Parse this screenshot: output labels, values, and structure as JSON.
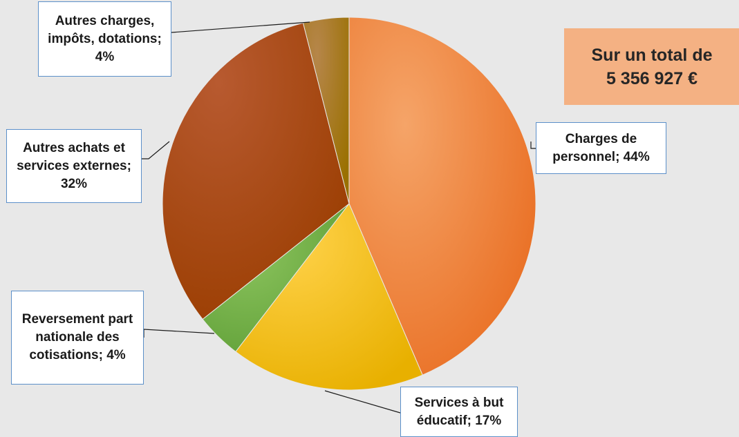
{
  "total": {
    "line1": "Sur un total de",
    "line2": "5 356 927 €"
  },
  "chart_data": {
    "type": "pie",
    "title": "",
    "unit": "%",
    "slices": [
      {
        "label": "Charges de personnel; 44%",
        "category": "Charges de personnel",
        "value": 44,
        "color": "#f07a28"
      },
      {
        "label": "Services à but éducatif; 17%",
        "category": "Services à but éducatif",
        "value": 17,
        "color": "#ffc000"
      },
      {
        "label": "Reversement part nationale des cotisations; 4%",
        "category": "Reversement part nationale des cotisations",
        "value": 4,
        "color": "#70ad47"
      },
      {
        "label": "Autres achats et services externes; 32%",
        "category": "Autres achats et services externes",
        "value": 32,
        "color": "#a94a10"
      },
      {
        "label": "Autres charges, impôts, dotations; 4%",
        "category": "Autres charges, impôts, dotations",
        "value": 4,
        "color": "#a8761d"
      }
    ]
  }
}
